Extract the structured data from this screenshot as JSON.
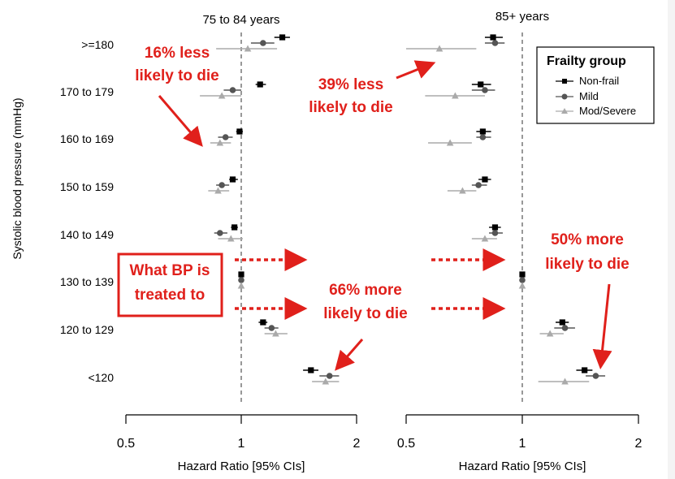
{
  "chart_data": [
    {
      "type": "scatter",
      "panel": "left",
      "title": "75 to 84 years",
      "xlabel": "Hazard Ratio [95% CIs]",
      "ylabel": "Systolic blood pressure (mmHg)",
      "x_scale": "log",
      "xlim": [
        0.5,
        2
      ],
      "x_ticks": [
        "0.5",
        "1",
        "2"
      ],
      "reference_line": 1,
      "categories": [
        ">=180",
        "170 to 179",
        "160 to 169",
        "150 to 159",
        "140 to 149",
        "130 to 139",
        "120 to 129",
        "<120"
      ],
      "series": [
        {
          "name": "Non-frail",
          "color": "#000000",
          "marker": "square",
          "values": [
            1.28,
            1.12,
            0.99,
            0.95,
            0.96,
            1.0,
            1.14,
            1.52
          ],
          "ci_low": [
            1.22,
            1.09,
            0.97,
            0.93,
            0.94,
            1.0,
            1.11,
            1.45
          ],
          "ci_high": [
            1.34,
            1.16,
            1.01,
            0.98,
            0.98,
            1.0,
            1.17,
            1.59
          ]
        },
        {
          "name": "Mild",
          "color": "#555555",
          "marker": "circle",
          "values": [
            1.14,
            0.95,
            0.91,
            0.89,
            0.88,
            1.0,
            1.2,
            1.7
          ],
          "ci_low": [
            1.06,
            0.9,
            0.87,
            0.86,
            0.85,
            1.0,
            1.15,
            1.6
          ],
          "ci_high": [
            1.22,
            1.0,
            0.95,
            0.93,
            0.92,
            1.0,
            1.25,
            1.8
          ]
        },
        {
          "name": "Mod/Severe",
          "color": "#aaaaaa",
          "marker": "triangle",
          "values": [
            1.04,
            0.89,
            0.88,
            0.87,
            0.94,
            1.0,
            1.23,
            1.66
          ],
          "ci_low": [
            0.86,
            0.78,
            0.83,
            0.82,
            0.87,
            1.0,
            1.15,
            1.53
          ],
          "ci_high": [
            1.24,
            1.0,
            0.94,
            0.93,
            1.01,
            1.0,
            1.32,
            1.8
          ]
        }
      ]
    },
    {
      "type": "scatter",
      "panel": "right",
      "title": "85+ years",
      "xlabel": "Hazard Ratio [95% CIs]",
      "x_scale": "log",
      "xlim": [
        0.5,
        2
      ],
      "x_ticks": [
        "0.5",
        "1",
        "2"
      ],
      "reference_line": 1,
      "categories": [
        ">=180",
        "170 to 179",
        "160 to 169",
        "150 to 159",
        "140 to 149",
        "130 to 139",
        "120 to 129",
        "<120"
      ],
      "series": [
        {
          "name": "Non-frail",
          "color": "#000000",
          "marker": "square",
          "values": [
            0.84,
            0.78,
            0.79,
            0.8,
            0.85,
            1.0,
            1.27,
            1.45
          ],
          "ci_low": [
            0.8,
            0.74,
            0.76,
            0.77,
            0.82,
            1.0,
            1.22,
            1.38
          ],
          "ci_high": [
            0.89,
            0.83,
            0.83,
            0.83,
            0.88,
            1.0,
            1.32,
            1.52
          ]
        },
        {
          "name": "Mild",
          "color": "#555555",
          "marker": "circle",
          "values": [
            0.85,
            0.8,
            0.79,
            0.77,
            0.85,
            1.0,
            1.29,
            1.55
          ],
          "ci_low": [
            0.8,
            0.74,
            0.76,
            0.74,
            0.82,
            1.0,
            1.21,
            1.46
          ],
          "ci_high": [
            0.9,
            0.85,
            0.83,
            0.81,
            0.89,
            1.0,
            1.37,
            1.64
          ]
        },
        {
          "name": "Mod/Severe",
          "color": "#aaaaaa",
          "marker": "triangle",
          "values": [
            0.61,
            0.67,
            0.65,
            0.7,
            0.8,
            1.0,
            1.18,
            1.29
          ],
          "ci_low": [
            0.5,
            0.56,
            0.57,
            0.64,
            0.74,
            1.0,
            1.11,
            1.1
          ],
          "ci_high": [
            0.76,
            0.8,
            0.74,
            0.76,
            0.86,
            1.0,
            1.28,
            1.49
          ]
        }
      ]
    }
  ],
  "legend": {
    "title": "Frailty group",
    "position": "top-right",
    "items": [
      "Non-frail",
      "Mild",
      "Mod/Severe"
    ]
  },
  "annotations": {
    "a16": [
      "16% less",
      "likely to die"
    ],
    "a39": [
      "39% less",
      "likely to die"
    ],
    "a66": [
      "66% more",
      "likely to die"
    ],
    "a50": [
      "50% more",
      "likely to die"
    ],
    "treated": [
      "What BP is",
      "treated to"
    ],
    "color": "#e0201b"
  }
}
